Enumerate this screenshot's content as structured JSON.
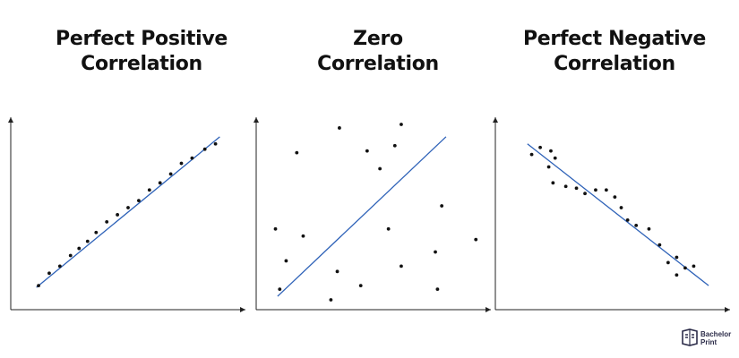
{
  "chart_data": [
    {
      "type": "scatter",
      "title_lines": [
        "Perfect Positive",
        "Correlation"
      ],
      "xlabel": "",
      "ylabel": "",
      "xlim": [
        0,
        100
      ],
      "ylim": [
        0,
        100
      ],
      "points": [
        [
          8,
          8
        ],
        [
          13,
          15
        ],
        [
          18,
          19
        ],
        [
          23,
          25
        ],
        [
          27,
          29
        ],
        [
          31,
          33
        ],
        [
          35,
          38
        ],
        [
          40,
          44
        ],
        [
          45,
          48
        ],
        [
          50,
          52
        ],
        [
          55,
          56
        ],
        [
          60,
          62
        ],
        [
          65,
          66
        ],
        [
          70,
          71
        ],
        [
          75,
          77
        ],
        [
          80,
          80
        ],
        [
          86,
          85
        ],
        [
          91,
          88
        ]
      ],
      "trend_line": [
        [
          7,
          7
        ],
        [
          93,
          92
        ]
      ],
      "point_color": "#111111",
      "line_color": "#2e62b8"
    },
    {
      "type": "scatter",
      "title_lines": [
        "Zero",
        "Correlation"
      ],
      "xlabel": "",
      "ylabel": "",
      "xlim": [
        0,
        100
      ],
      "ylim": [
        0,
        100
      ],
      "points": [
        [
          14,
          83
        ],
        [
          34,
          97
        ],
        [
          53,
          74
        ],
        [
          47,
          84
        ],
        [
          60,
          87
        ],
        [
          63,
          99
        ],
        [
          82,
          53
        ],
        [
          57,
          40
        ],
        [
          4,
          40
        ],
        [
          17,
          36
        ],
        [
          9,
          22
        ],
        [
          33,
          16
        ],
        [
          63,
          19
        ],
        [
          79,
          27
        ],
        [
          98,
          34
        ],
        [
          6,
          6
        ],
        [
          44,
          8
        ],
        [
          30,
          0
        ],
        [
          80,
          6
        ]
      ],
      "trend_line": [
        [
          5,
          2
        ],
        [
          84,
          92
        ]
      ],
      "point_color": "#111111",
      "line_color": "#2e62b8"
    },
    {
      "type": "scatter",
      "title_lines": [
        "Perfect Negative",
        "Correlation"
      ],
      "xlabel": "",
      "ylabel": "",
      "xlim": [
        0,
        100
      ],
      "ylim": [
        0,
        100
      ],
      "points": [
        [
          12,
          82
        ],
        [
          16,
          86
        ],
        [
          21,
          84
        ],
        [
          23,
          80
        ],
        [
          20,
          75
        ],
        [
          22,
          66
        ],
        [
          28,
          64
        ],
        [
          33,
          63
        ],
        [
          37,
          60
        ],
        [
          42,
          62
        ],
        [
          47,
          62
        ],
        [
          51,
          58
        ],
        [
          54,
          52
        ],
        [
          57,
          45
        ],
        [
          61,
          42
        ],
        [
          67,
          40
        ],
        [
          72,
          31
        ],
        [
          76,
          21
        ],
        [
          80,
          14
        ],
        [
          80,
          24
        ],
        [
          84,
          18
        ],
        [
          88,
          19
        ]
      ],
      "trend_line": [
        [
          10,
          88
        ],
        [
          95,
          8
        ]
      ],
      "point_color": "#111111",
      "line_color": "#2e62b8"
    }
  ],
  "watermark": {
    "line1": "Bachelor",
    "line2": "Print",
    "color": "#2d2d4a"
  }
}
